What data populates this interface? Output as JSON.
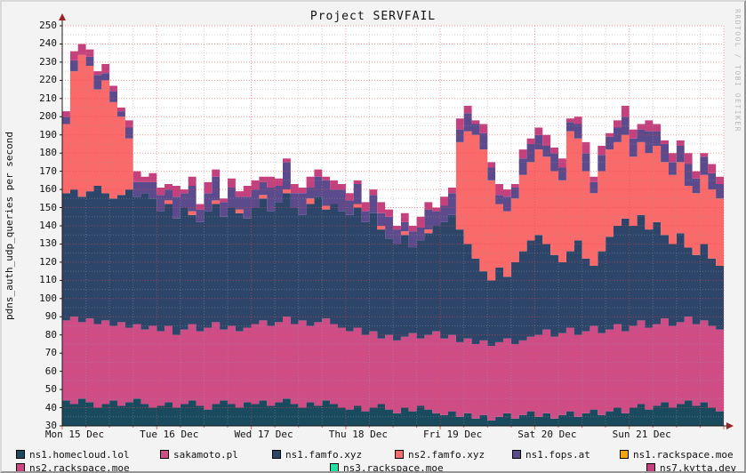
{
  "title": "Project SERVFAIL",
  "watermark": "RRDTOOL / TOBI OETIKER",
  "y_axis": {
    "label": "pdns_auth_udp_queries per second"
  },
  "x_axis": {
    "labels": [
      "Mon 15 Dec",
      "Tue 16 Dec",
      "Wed 17 Dec",
      "Thu 18 Dec",
      "Fri 19 Dec",
      "Sat 20 Dec",
      "Sun 21 Dec"
    ]
  },
  "colors": {
    "canvas": "#ffffff",
    "background": "#f3f3f3",
    "major_grid": "#ee4444",
    "minor_grid": "#9a9a9a",
    "axis": "#1a1a1a",
    "arrow": "#992222"
  },
  "chart_data": {
    "type": "area",
    "stacked": true,
    "title": "Project SERVFAIL",
    "ylabel": "pdns_auth_udp_queries per second",
    "ylim": [
      30,
      250
    ],
    "y_major_step": 10,
    "y_minor_step": 5,
    "days": 7,
    "points": 84,
    "hours_per_point": 2,
    "x_minor_hours": 6,
    "x_major_hours": 24,
    "legend_grid_on": true,
    "series": [
      {
        "name": "ns1.homecloud.lol",
        "color": "#1a4a5e",
        "values": [
          44,
          42,
          45,
          43,
          40,
          42,
          44,
          41,
          43,
          45,
          42,
          40,
          41,
          43,
          40,
          42,
          44,
          41,
          39,
          42,
          44,
          42,
          40,
          43,
          42,
          44,
          41,
          43,
          45,
          42,
          40,
          43,
          41,
          44,
          42,
          40,
          39,
          41,
          38,
          40,
          42,
          39,
          37,
          40,
          38,
          41,
          39,
          37,
          36,
          38,
          35,
          37,
          34,
          36,
          33,
          35,
          37,
          34,
          36,
          38,
          35,
          37,
          34,
          36,
          38,
          35,
          37,
          39,
          36,
          38,
          40,
          37,
          40,
          42,
          39,
          41,
          43,
          40,
          42,
          44,
          41,
          43,
          40,
          38
        ]
      },
      {
        "name": "sakamoto.pl",
        "color": "#ce4d87",
        "values": [
          44,
          48,
          42,
          46,
          46,
          46,
          41,
          46,
          41,
          41,
          41,
          45,
          41,
          42,
          40,
          41,
          42,
          41,
          45,
          45,
          39,
          43,
          42,
          41,
          44,
          44,
          44,
          44,
          45,
          44,
          48,
          42,
          46,
          45,
          44,
          44,
          43,
          43,
          42,
          42,
          36,
          41,
          40,
          39,
          43,
          37,
          41,
          45,
          42,
          42,
          41,
          41,
          41,
          41,
          41,
          41,
          41,
          41,
          41,
          41,
          45,
          46,
          45,
          45,
          46,
          45,
          45,
          46,
          45,
          45,
          46,
          45,
          45,
          46,
          45,
          45,
          46,
          45,
          45,
          46,
          45,
          45,
          45,
          45
        ]
      },
      {
        "name": "ns1.famfo.xyz",
        "color": "#2c4569",
        "values": [
          70,
          70,
          69,
          70,
          76,
          70,
          70,
          70,
          76,
          70,
          75,
          70,
          66,
          67,
          64,
          67,
          60,
          60,
          64,
          65,
          62,
          65,
          65,
          60,
          64,
          67,
          63,
          66,
          68,
          64,
          58,
          67,
          69,
          60,
          66,
          64,
          64,
          66,
          62,
          65,
          60,
          53,
          53,
          56,
          47,
          54,
          56,
          58,
          64,
          66,
          62,
          52,
          47,
          38,
          36,
          41,
          34,
          45,
          49,
          53,
          55,
          47,
          45,
          39,
          42,
          52,
          40,
          33,
          45,
          51,
          54,
          62,
          55,
          58,
          54,
          56,
          46,
          45,
          49,
          38,
          38,
          42,
          37,
          35
        ]
      },
      {
        "name": "ns2.famfo.xyz",
        "color": "#fa6a6a",
        "values": [
          38,
          65,
          78,
          69,
          53,
          62,
          53,
          43,
          28,
          0,
          0,
          0,
          0,
          2,
          0,
          0,
          2,
          0,
          0,
          2,
          0,
          0,
          2,
          0,
          0,
          2,
          0,
          0,
          2,
          0,
          0,
          3,
          0,
          2,
          0,
          0,
          0,
          2,
          0,
          0,
          2,
          0,
          0,
          2,
          0,
          0,
          2,
          0,
          0,
          0,
          48,
          62,
          68,
          67,
          55,
          35,
          36,
          35,
          42,
          43,
          47,
          48,
          46,
          45,
          66,
          56,
          48,
          40,
          44,
          48,
          46,
          46,
          38,
          40,
          42,
          42,
          40,
          38,
          39,
          34,
          34,
          38,
          38,
          37
        ]
      },
      {
        "name": "ns1.fops.at",
        "color": "#5c4b8c",
        "values": [
          4,
          6,
          0,
          5,
          8,
          4,
          6,
          3,
          6,
          8,
          6,
          9,
          9,
          6,
          12,
          8,
          14,
          7,
          10,
          13,
          8,
          11,
          7,
          12,
          10,
          7,
          13,
          9,
          15,
          8,
          12,
          6,
          11,
          14,
          8,
          12,
          8,
          11,
          6,
          10,
          7,
          12,
          8,
          5,
          9,
          7,
          11,
          8,
          9,
          12,
          7,
          10,
          6,
          9,
          7,
          5,
          8,
          6,
          9,
          10,
          8,
          6,
          10,
          7,
          5,
          8,
          10,
          6,
          9,
          7,
          8,
          10,
          10,
          7,
          12,
          8,
          10,
          7,
          9,
          12,
          8,
          10,
          9,
          8
        ]
      },
      {
        "name": "ns1.rackspace.moe",
        "color": "#f2a60d",
        "values": []
      },
      {
        "name": "ns2.rackspace.moe",
        "color": "#cc4684",
        "values": []
      },
      {
        "name": "ns3.rackspace.moe",
        "color": "#21e0a5",
        "values": []
      },
      {
        "name": "ns7.kytta.dev",
        "color": "#c4417e",
        "values": [
          3,
          5,
          6,
          4,
          2,
          5,
          3,
          2,
          4,
          6,
          3,
          5,
          4,
          3,
          6,
          2,
          5,
          3,
          6,
          4,
          2,
          5,
          3,
          6,
          5,
          3,
          6,
          4,
          2,
          5,
          3,
          6,
          4,
          2,
          5,
          3,
          4,
          2,
          5,
          3,
          6,
          4,
          2,
          5,
          3,
          6,
          4,
          2,
          5,
          3,
          6,
          4,
          2,
          5,
          3,
          6,
          4,
          2,
          5,
          3,
          4,
          6,
          3,
          5,
          2,
          4,
          6,
          3,
          5,
          2,
          4,
          6,
          5,
          3,
          6,
          4,
          2,
          5,
          3,
          6,
          4,
          2,
          5,
          4
        ]
      }
    ]
  }
}
